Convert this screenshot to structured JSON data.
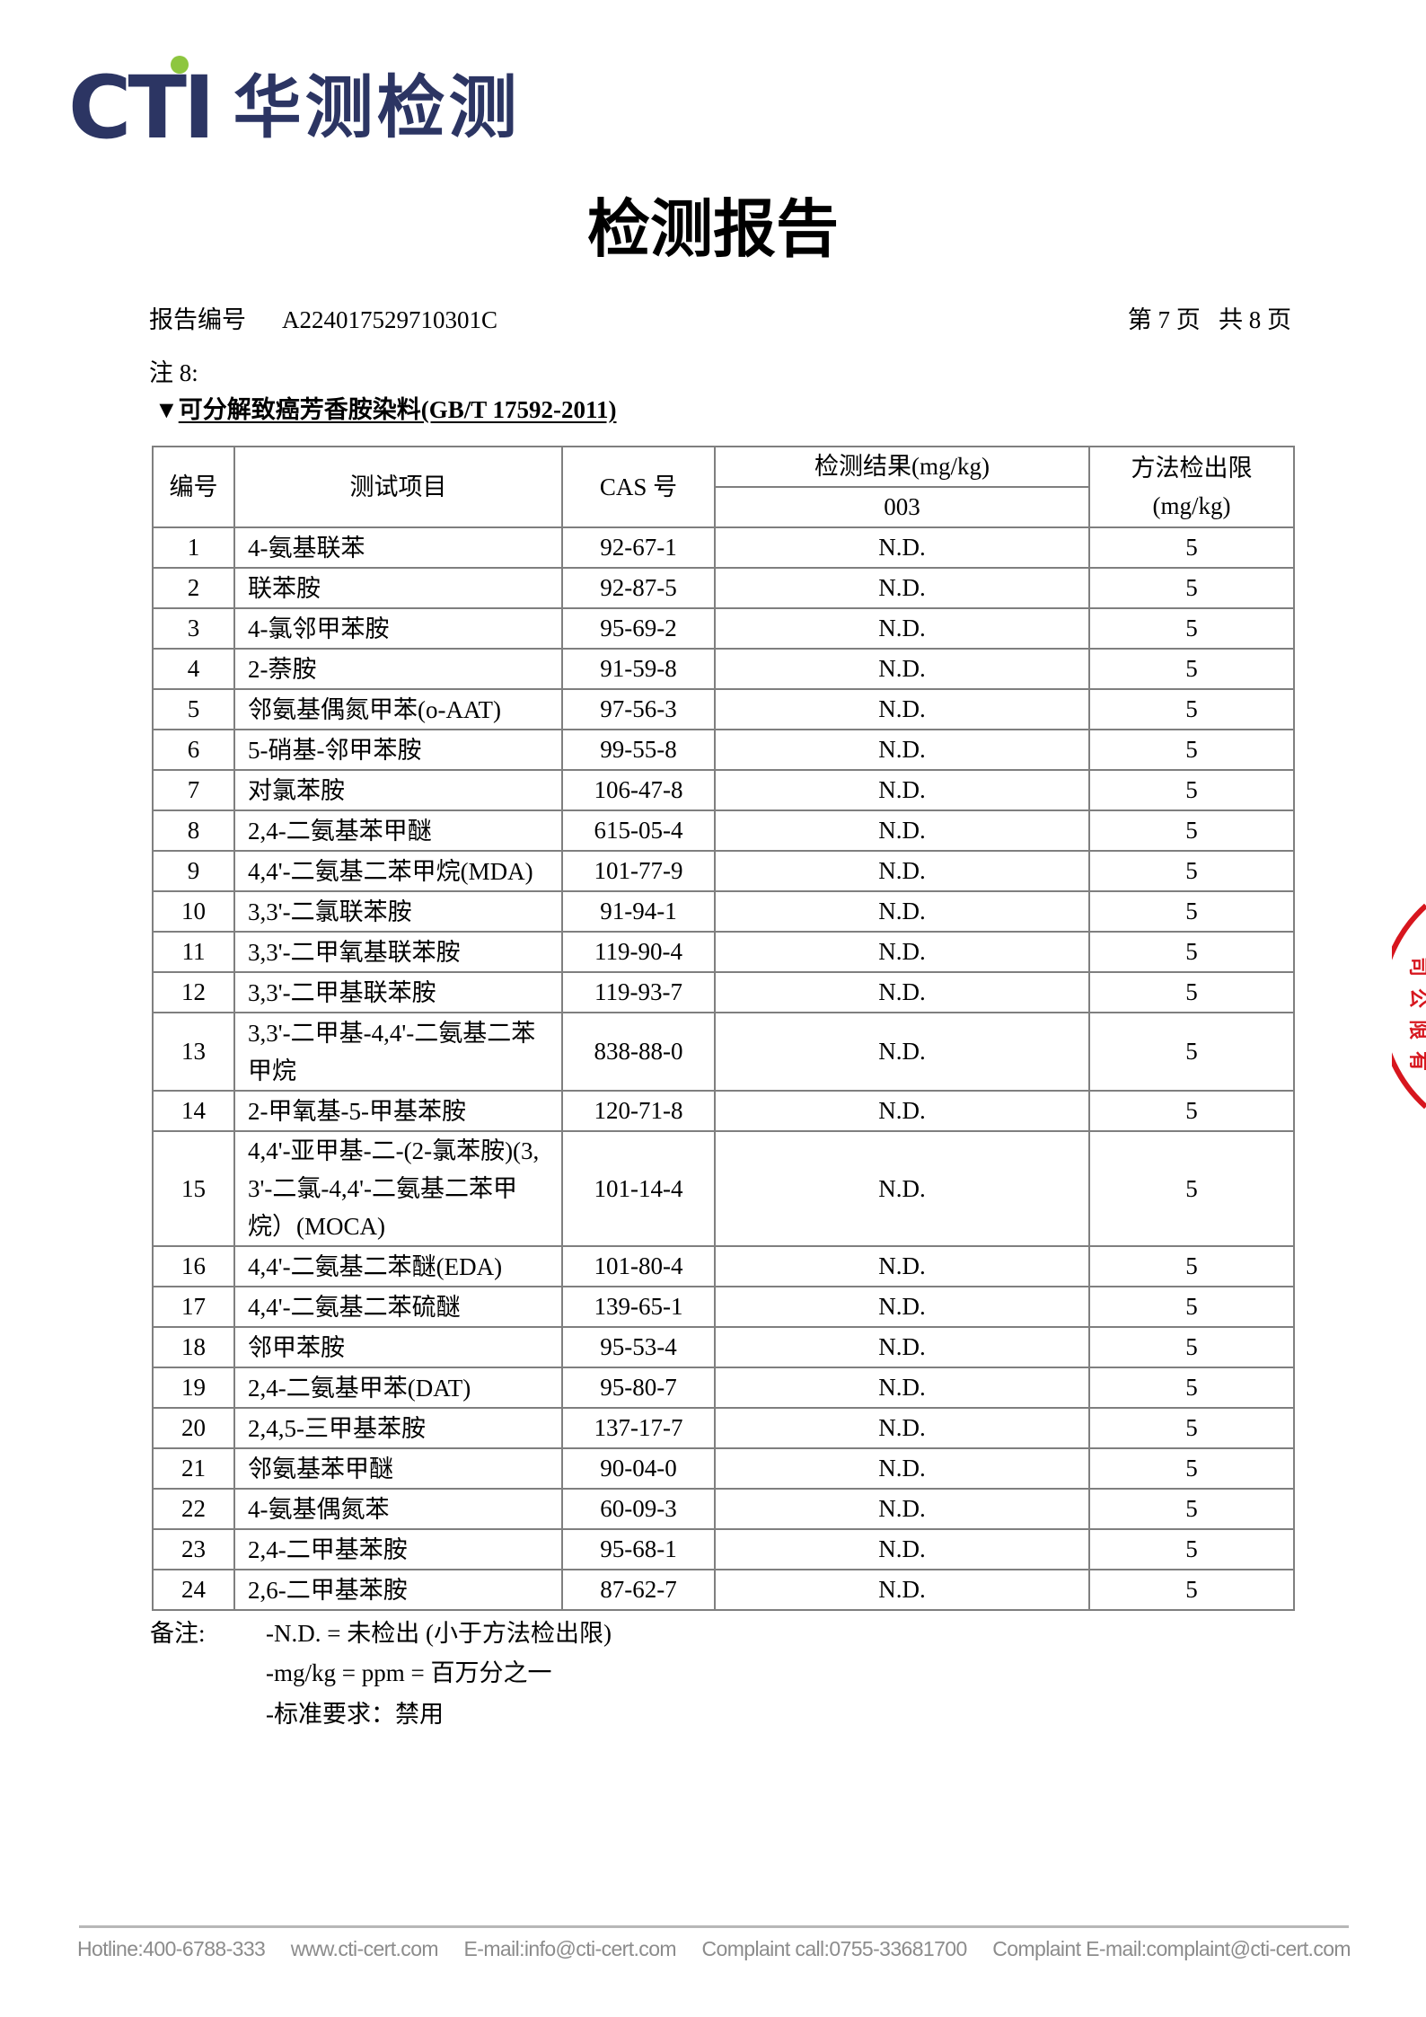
{
  "logo": {
    "brand": "CTI",
    "name_cn": "华测检测",
    "brand_color": "#2c3563",
    "dot_color": "#8dc63f"
  },
  "title": "检测报告",
  "header": {
    "report_no_label": "报告编号",
    "report_no": "A224017529710301C",
    "page_info": "第 7 页   共 8 页"
  },
  "note_label": "注 8:",
  "section": {
    "marker": "▼",
    "title": "可分解致癌芳香胺染料(GB/T 17592-2011)"
  },
  "table": {
    "headers": {
      "no": "编号",
      "item": "测试项目",
      "cas": "CAS 号",
      "result": "检测结果(mg/kg)",
      "sample": "003",
      "mdl": "方法检出限",
      "mdl_unit": "(mg/kg)"
    },
    "rows": [
      {
        "no": "1",
        "item": "4-氨基联苯",
        "cas": "92-67-1",
        "result": "N.D.",
        "mdl": "5"
      },
      {
        "no": "2",
        "item": "联苯胺",
        "cas": "92-87-5",
        "result": "N.D.",
        "mdl": "5"
      },
      {
        "no": "3",
        "item": "4-氯邻甲苯胺",
        "cas": "95-69-2",
        "result": "N.D.",
        "mdl": "5"
      },
      {
        "no": "4",
        "item": "2-萘胺",
        "cas": "91-59-8",
        "result": "N.D.",
        "mdl": "5"
      },
      {
        "no": "5",
        "item": "邻氨基偶氮甲苯(o-AAT)",
        "cas": "97-56-3",
        "result": "N.D.",
        "mdl": "5"
      },
      {
        "no": "6",
        "item": "5-硝基-邻甲苯胺",
        "cas": "99-55-8",
        "result": "N.D.",
        "mdl": "5"
      },
      {
        "no": "7",
        "item": "对氯苯胺",
        "cas": "106-47-8",
        "result": "N.D.",
        "mdl": "5"
      },
      {
        "no": "8",
        "item": "2,4-二氨基苯甲醚",
        "cas": "615-05-4",
        "result": "N.D.",
        "mdl": "5"
      },
      {
        "no": "9",
        "item": "4,4'-二氨基二苯甲烷(MDA)",
        "cas": "101-77-9",
        "result": "N.D.",
        "mdl": "5"
      },
      {
        "no": "10",
        "item": "3,3'-二氯联苯胺",
        "cas": "91-94-1",
        "result": "N.D.",
        "mdl": "5"
      },
      {
        "no": "11",
        "item": "3,3'-二甲氧基联苯胺",
        "cas": "119-90-4",
        "result": "N.D.",
        "mdl": "5"
      },
      {
        "no": "12",
        "item": "3,3'-二甲基联苯胺",
        "cas": "119-93-7",
        "result": "N.D.",
        "mdl": "5"
      },
      {
        "no": "13",
        "item": "3,3'-二甲基-4,4'-二氨基二苯甲烷",
        "cas": "838-88-0",
        "result": "N.D.",
        "mdl": "5"
      },
      {
        "no": "14",
        "item": "2-甲氧基-5-甲基苯胺",
        "cas": "120-71-8",
        "result": "N.D.",
        "mdl": "5"
      },
      {
        "no": "15",
        "item": "4,4'-亚甲基-二-(2-氯苯胺)(3,3'-二氯-4,4'-二氨基二苯甲烷）(MOCA)",
        "cas": "101-14-4",
        "result": "N.D.",
        "mdl": "5"
      },
      {
        "no": "16",
        "item": "4,4'-二氨基二苯醚(EDA)",
        "cas": "101-80-4",
        "result": "N.D.",
        "mdl": "5"
      },
      {
        "no": "17",
        "item": "4,4'-二氨基二苯硫醚",
        "cas": "139-65-1",
        "result": "N.D.",
        "mdl": "5"
      },
      {
        "no": "18",
        "item": "邻甲苯胺",
        "cas": "95-53-4",
        "result": "N.D.",
        "mdl": "5"
      },
      {
        "no": "19",
        "item": "2,4-二氨基甲苯(DAT)",
        "cas": "95-80-7",
        "result": "N.D.",
        "mdl": "5"
      },
      {
        "no": "20",
        "item": "2,4,5-三甲基苯胺",
        "cas": "137-17-7",
        "result": "N.D.",
        "mdl": "5"
      },
      {
        "no": "21",
        "item": "邻氨基苯甲醚",
        "cas": "90-04-0",
        "result": "N.D.",
        "mdl": "5"
      },
      {
        "no": "22",
        "item": "4-氨基偶氮苯",
        "cas": "60-09-3",
        "result": "N.D.",
        "mdl": "5"
      },
      {
        "no": "23",
        "item": "2,4-二甲基苯胺",
        "cas": "95-68-1",
        "result": "N.D.",
        "mdl": "5"
      },
      {
        "no": "24",
        "item": "2,6-二甲基苯胺",
        "cas": "87-62-7",
        "result": "N.D.",
        "mdl": "5"
      }
    ]
  },
  "remarks": {
    "label": "备注:",
    "lines": [
      "-N.D. = 未检出 (小于方法检出限)",
      "-mg/kg = ppm = 百万分之一",
      "-标准要求：禁用"
    ]
  },
  "footer": {
    "hotline": "Hotline:400-6788-333",
    "website": "www.cti-cert.com",
    "email": "E-mail:info@cti-cert.com",
    "complaint_call": "Complaint call:0755-33681700",
    "complaint_email": "Complaint E-mail:complaint@cti-cert.com"
  },
  "stamp": {
    "color": "#d7161e",
    "text": "有限公司"
  }
}
